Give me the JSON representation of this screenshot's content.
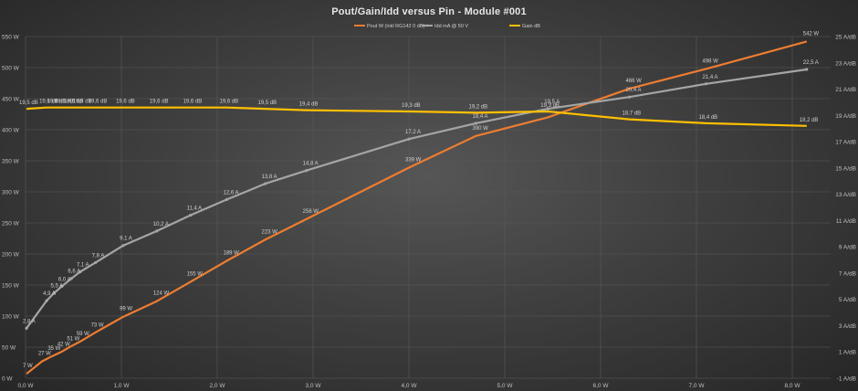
{
  "chart_data": {
    "type": "line",
    "title": "Pout/Gain/Idd versus Pin - Module #001",
    "xlabel": "",
    "ylabel": "",
    "xlim": [
      0,
      8.4
    ],
    "ylim_left": [
      0,
      550
    ],
    "ylim_right": [
      -1,
      25
    ],
    "x_ticks": [
      "0,0 W",
      "1,0 W",
      "2,0 W",
      "3,0 W",
      "4,0 W",
      "5,0 W",
      "6,0 W",
      "7,0 W",
      "8,0 W"
    ],
    "y_left_ticks": [
      "0 W",
      "50 W",
      "100 W",
      "150 W",
      "200 W",
      "250 W",
      "300 W",
      "350 W",
      "400 W",
      "450 W",
      "500 W",
      "550 W"
    ],
    "y_right_ticks": [
      "-1 A/dB",
      "1 A/dB",
      "3 A/dB",
      "5 A/dB",
      "7 A/dB",
      "9 A/dB",
      "11 A/dB",
      "13 A/dB",
      "15 A/dB",
      "17 A/dB",
      "19 A/dB",
      "21 A/dB",
      "23 A/dB",
      "25 A/dB"
    ],
    "grid": true,
    "legend_position": "top-right",
    "colors": {
      "pout": "#ed7d31",
      "idd": "#a5a5a5",
      "gain": "#ffc000"
    },
    "series": [
      {
        "name": "Pout W (inkl RG142 0 dB)",
        "axis": "left",
        "x": [
          0.01,
          0.17,
          0.27,
          0.37,
          0.47,
          0.57,
          0.72,
          1.02,
          1.37,
          1.72,
          2.1,
          2.5,
          2.93,
          4.0,
          4.7,
          5.45,
          6.3,
          7.1,
          8.15
        ],
        "y": [
          7,
          27,
          35,
          42,
          51,
          59,
          73,
          99,
          124,
          155,
          189,
          223,
          256,
          339,
          390,
          420,
          466,
          498,
          542
        ],
        "labels": [
          "7 W",
          "27 W",
          "35 W",
          "42 W",
          "51 W",
          "59 W",
          "73 W",
          "99 W",
          "124 W",
          "155 W",
          "189 W",
          "223 W",
          "256 W",
          "339 W",
          "390 W",
          "",
          "466 W",
          "498 W",
          "542 W"
        ]
      },
      {
        "name": "Idd mA @ 50 V",
        "axis": "right",
        "x": [
          0.01,
          0.22,
          0.3,
          0.38,
          0.48,
          0.57,
          0.73,
          1.02,
          1.37,
          1.72,
          2.1,
          2.5,
          2.93,
          4.0,
          4.7,
          5.45,
          6.3,
          7.1,
          8.15
        ],
        "y": [
          2.8,
          4.9,
          5.5,
          6.0,
          6.6,
          7.1,
          7.8,
          9.1,
          10.2,
          11.4,
          12.6,
          13.8,
          14.8,
          17.2,
          18.4,
          19.5,
          20.4,
          21.4,
          22.5
        ],
        "labels": [
          "2,8 A",
          "4,9 A",
          "5,5 A",
          "6,0 A",
          "6,6 A",
          "7,1 A",
          "7,8 A",
          "9,1 A",
          "10,2 A",
          "11,4 A",
          "12,6 A",
          "13,8 A",
          "14,8 A",
          "17,2 A",
          "18,4 A",
          "19,5 A",
          "20,4 A",
          "21,4 A",
          "22,5 A"
        ]
      },
      {
        "name": "Gain dB",
        "axis": "right",
        "x": [
          0.01,
          0.22,
          0.3,
          0.38,
          0.48,
          0.57,
          0.73,
          1.02,
          1.37,
          1.72,
          2.1,
          2.5,
          2.93,
          4.0,
          4.7,
          5.45,
          6.3,
          7.1,
          8.15
        ],
        "y": [
          19.5,
          19.6,
          19.6,
          19.6,
          19.6,
          19.6,
          19.6,
          19.6,
          19.6,
          19.6,
          19.6,
          19.5,
          19.4,
          19.3,
          19.2,
          19.3,
          18.7,
          18.4,
          18.2
        ],
        "labels": [
          "19,5 dB",
          "19,6 dB",
          "19,6 dB",
          "19,6 dB",
          "19,6 dB",
          "19,6 dB",
          "19,6 dB",
          "19,6 dB",
          "19,6 dB",
          "19,6 dB",
          "19,6 dB",
          "19,5 dB",
          "19,4 dB",
          "19,3 dB",
          "19,2 dB",
          "19,3 dB",
          "18,7 dB",
          "18,4 dB",
          "18,2 dB"
        ]
      }
    ]
  }
}
